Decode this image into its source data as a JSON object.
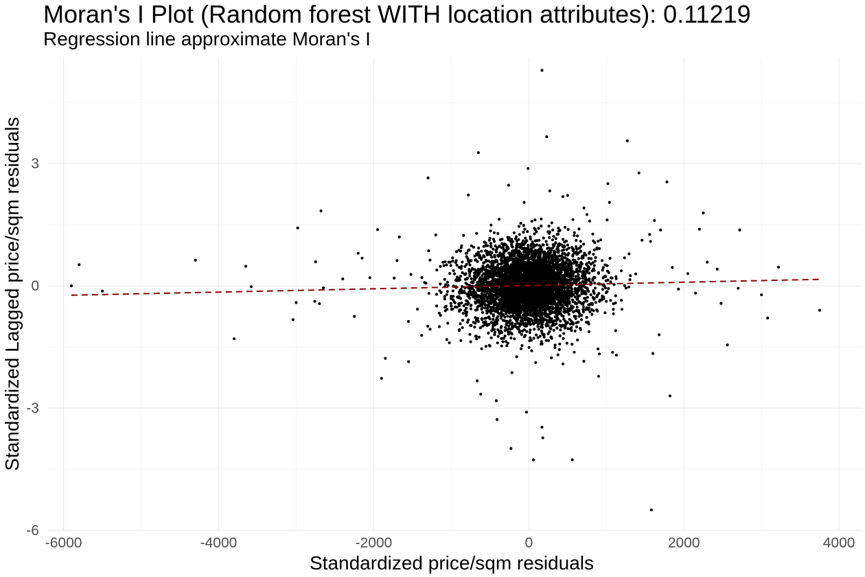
{
  "chart_data": {
    "type": "scatter",
    "title": "Moran's I Plot (Random forest WITH location attributes): 0.11219",
    "subtitle": "Regression line approximate Moran's I",
    "xlabel": "Standardized price/sqm residuals",
    "ylabel": "Standardized Lagged price/sqm residuals",
    "xlim": [
      -6200,
      4300
    ],
    "ylim": [
      -6,
      5.6
    ],
    "xticks": [
      -6000,
      -4000,
      -2000,
      0,
      2000,
      4000
    ],
    "xtick_labels": [
      "-6000",
      "-4000",
      "-2000",
      "0",
      "2000",
      "4000"
    ],
    "yticks": [
      -6,
      -3,
      0,
      3
    ],
    "ytick_labels": [
      "-6",
      "-3",
      "0",
      "3"
    ],
    "grid": true,
    "legend": "none",
    "point_color": "#000000",
    "regression_line": {
      "style": "dashed",
      "color": "#8b0000",
      "points": [
        [
          -5900,
          -0.23
        ],
        [
          3760,
          0.16
        ]
      ]
    },
    "outlier_points": [
      [
        -5900,
        0.0
      ],
      [
        -5800,
        0.52
      ],
      [
        -5500,
        -0.13
      ],
      [
        -4300,
        0.63
      ],
      [
        -3800,
        -1.3
      ],
      [
        -3650,
        0.48
      ],
      [
        -3580,
        -0.02
      ],
      [
        -3040,
        -0.83
      ],
      [
        -3000,
        -0.41
      ],
      [
        -2980,
        1.42
      ],
      [
        -2760,
        -0.38
      ],
      [
        -2750,
        0.59
      ],
      [
        -2700,
        -0.44
      ],
      [
        -2680,
        1.84
      ],
      [
        -2650,
        -0.05
      ],
      [
        -2400,
        0.17
      ],
      [
        -2250,
        -0.75
      ],
      [
        -2200,
        0.8
      ],
      [
        -2150,
        0.68
      ],
      [
        -1950,
        1.38
      ],
      [
        -1900,
        -2.27
      ],
      [
        -1850,
        -1.78
      ],
      [
        -1700,
        0.62
      ],
      [
        -1670,
        1.2
      ],
      [
        -1550,
        -1.86
      ],
      [
        -1520,
        0.28
      ],
      [
        -1300,
        2.65
      ],
      [
        -1200,
        1.25
      ],
      [
        -780,
        2.23
      ],
      [
        -650,
        3.27
      ],
      [
        -620,
        -2.66
      ],
      [
        -560,
        0.86
      ],
      [
        -420,
        -2.82
      ],
      [
        -410,
        -3.28
      ],
      [
        -260,
        2.47
      ],
      [
        -230,
        -3.99
      ],
      [
        -60,
        2.05
      ],
      [
        -30,
        -3.1
      ],
      [
        -10,
        2.88
      ],
      [
        60,
        -4.27
      ],
      [
        80,
        1.62
      ],
      [
        170,
        5.29
      ],
      [
        170,
        -3.47
      ],
      [
        180,
        -3.73
      ],
      [
        230,
        3.66
      ],
      [
        270,
        2.33
      ],
      [
        440,
        2.19
      ],
      [
        500,
        2.22
      ],
      [
        560,
        -4.27
      ],
      [
        750,
        1.75
      ],
      [
        900,
        -2.22
      ],
      [
        910,
        -1.67
      ],
      [
        1010,
        1.62
      ],
      [
        1020,
        2.51
      ],
      [
        1040,
        2.05
      ],
      [
        1080,
        -1.63
      ],
      [
        1130,
        -1.7
      ],
      [
        1270,
        3.56
      ],
      [
        1420,
        2.77
      ],
      [
        1460,
        1.12
      ],
      [
        1570,
        1.09
      ],
      [
        1580,
        -5.5
      ],
      [
        1600,
        -1.66
      ],
      [
        1620,
        1.6
      ],
      [
        1680,
        -1.2
      ],
      [
        1700,
        1.37
      ],
      [
        1780,
        2.55
      ],
      [
        1820,
        -2.7
      ],
      [
        2050,
        0.3
      ],
      [
        2200,
        1.39
      ],
      [
        2250,
        1.79
      ],
      [
        2300,
        0.58
      ],
      [
        2430,
        0.41
      ],
      [
        2480,
        -0.43
      ],
      [
        2560,
        -1.45
      ],
      [
        2700,
        -0.06
      ],
      [
        2720,
        1.37
      ],
      [
        3000,
        -0.22
      ],
      [
        3080,
        -0.79
      ],
      [
        3220,
        0.46
      ],
      [
        3750,
        -0.6
      ],
      [
        1930,
        -0.08
      ],
      [
        2150,
        -0.18
      ],
      [
        1850,
        0.45
      ],
      [
        -2050,
        0.2
      ]
    ],
    "cluster_points": {
      "count": 3800,
      "x_center": 0,
      "x_sd": 430,
      "y_center": 0,
      "y_sd": 0.55,
      "inner_count": 1400,
      "inner_x_sd": 190,
      "inner_y_sd": 0.3
    }
  }
}
